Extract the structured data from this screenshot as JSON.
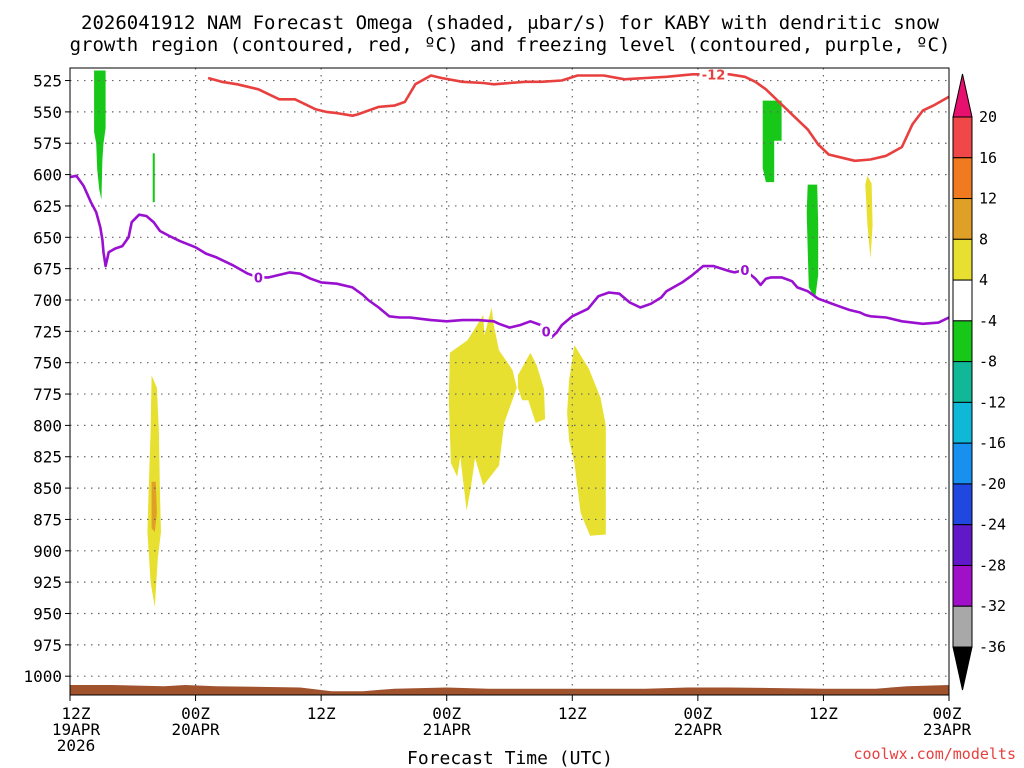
{
  "title_line1": "2026041912 NAM Forecast Omega (shaded, μbar/s) for KABY with dendritic snow",
  "title_line2": "growth region (contoured, red, ºC) and freezing level (contoured, purple, ºC)",
  "credit": "coolwx.com/modelts",
  "colors": {
    "dgz_contour": "#e8403f",
    "freezing_contour": "#9a10d0",
    "ground": "#a0522d",
    "grid": "#666666"
  },
  "chart_data": {
    "type": "time-height contour",
    "x_unit": "forecast hour",
    "xlabel": "Forecast Time (UTC)",
    "xlim": [
      0,
      84
    ],
    "x_ticks": [
      {
        "hour": 0,
        "line1": "12Z",
        "line2": "19APR",
        "line3": "2026"
      },
      {
        "hour": 12,
        "line1": "00Z",
        "line2": "20APR",
        "line3": ""
      },
      {
        "hour": 24,
        "line1": "12Z",
        "line2": "",
        "line3": ""
      },
      {
        "hour": 36,
        "line1": "00Z",
        "line2": "21APR",
        "line3": ""
      },
      {
        "hour": 48,
        "line1": "12Z",
        "line2": "",
        "line3": ""
      },
      {
        "hour": 60,
        "line1": "00Z",
        "line2": "22APR",
        "line3": ""
      },
      {
        "hour": 72,
        "line1": "12Z",
        "line2": "",
        "line3": ""
      },
      {
        "hour": 84,
        "line1": "00Z",
        "line2": "23APR",
        "line3": ""
      }
    ],
    "y_unit": "hPa",
    "ylim": [
      1015,
      515
    ],
    "y_ticks": [
      "525",
      "550",
      "575",
      "600",
      "625",
      "650",
      "675",
      "700",
      "725",
      "750",
      "775",
      "800",
      "825",
      "850",
      "875",
      "900",
      "925",
      "950",
      "975",
      "1000"
    ],
    "grid": true,
    "colorbar": {
      "labels": [
        "20",
        "16",
        "12",
        "8",
        "4",
        "-4",
        "-8",
        "-12",
        "-16",
        "-20",
        "-24",
        "-28",
        "-32",
        "-36"
      ],
      "colors_top_to_bottom": [
        "#e8106e",
        "#f04848",
        "#f07a20",
        "#e0a028",
        "#e8e030",
        "#ffffff",
        "#18c818",
        "#10b898",
        "#10b8d8",
        "#1890f0",
        "#2048e0",
        "#6018c8",
        "#a010c8",
        "#a8a8a8",
        "#000000"
      ]
    },
    "contours": [
      {
        "label": "-12",
        "points": [
          [
            13.2,
            523
          ],
          [
            14.5,
            526
          ],
          [
            16,
            528
          ],
          [
            18,
            532
          ],
          [
            20,
            540
          ],
          [
            21.5,
            540
          ],
          [
            23.5,
            548
          ],
          [
            24.5,
            550
          ],
          [
            25.5,
            551
          ],
          [
            27,
            553
          ],
          [
            27.5,
            552
          ],
          [
            28.5,
            549
          ],
          [
            29.5,
            546
          ],
          [
            31,
            545
          ],
          [
            32,
            542
          ],
          [
            33,
            528
          ],
          [
            34.5,
            521
          ],
          [
            35.5,
            523
          ],
          [
            37.5,
            526
          ],
          [
            39.5,
            527
          ],
          [
            40.5,
            528
          ],
          [
            42,
            527
          ],
          [
            43.5,
            526
          ],
          [
            45,
            526
          ],
          [
            47,
            525
          ],
          [
            48.5,
            521
          ],
          [
            51,
            521
          ],
          [
            53,
            524
          ],
          [
            55,
            523
          ],
          [
            57,
            522
          ],
          [
            59.5,
            520
          ],
          [
            61,
            520
          ],
          [
            63,
            520
          ],
          [
            64.5,
            522
          ],
          [
            65.5,
            526
          ],
          [
            66.5,
            532
          ],
          [
            67.5,
            540
          ],
          [
            69,
            552
          ],
          [
            70.5,
            564
          ],
          [
            71.5,
            576
          ],
          [
            72.5,
            584
          ],
          [
            74,
            587
          ],
          [
            75,
            589
          ],
          [
            76.5,
            588
          ],
          [
            78,
            585
          ],
          [
            79.5,
            578
          ],
          [
            80.5,
            560
          ],
          [
            81.5,
            549
          ],
          [
            82.5,
            545
          ],
          [
            84,
            538
          ]
        ]
      },
      {
        "label": "0",
        "points": [
          [
            0,
            602
          ],
          [
            0.6,
            601
          ],
          [
            1.3,
            609
          ],
          [
            2,
            622
          ],
          [
            2.5,
            630
          ],
          [
            2.9,
            642
          ],
          [
            3.1,
            652
          ],
          [
            3.2,
            662
          ],
          [
            3.4,
            673
          ],
          [
            3.7,
            662
          ],
          [
            4.3,
            659
          ],
          [
            5,
            657
          ],
          [
            5.6,
            650
          ],
          [
            5.9,
            638
          ],
          [
            6.6,
            632
          ],
          [
            7.3,
            633
          ],
          [
            8,
            638
          ],
          [
            8.6,
            645
          ],
          [
            9.5,
            649
          ],
          [
            10.5,
            653
          ],
          [
            12,
            658
          ],
          [
            13,
            663
          ],
          [
            14,
            666
          ],
          [
            15.5,
            672
          ],
          [
            17,
            679
          ],
          [
            18,
            682
          ],
          [
            19,
            682
          ],
          [
            20,
            680
          ],
          [
            21,
            678
          ],
          [
            22,
            679
          ],
          [
            23,
            683
          ],
          [
            24,
            686
          ],
          [
            25.5,
            687
          ],
          [
            27,
            690
          ],
          [
            28,
            696
          ],
          [
            28.5,
            700
          ],
          [
            29.5,
            706
          ],
          [
            30.5,
            713
          ],
          [
            31.5,
            714
          ],
          [
            32.5,
            714
          ],
          [
            33.5,
            715
          ],
          [
            34.5,
            716
          ],
          [
            36,
            717
          ],
          [
            37.5,
            716
          ],
          [
            39,
            716
          ],
          [
            40.5,
            717
          ],
          [
            41,
            719
          ],
          [
            42,
            722
          ],
          [
            43,
            720
          ],
          [
            44,
            717
          ],
          [
            45,
            720
          ],
          [
            45.5,
            725
          ],
          [
            46,
            730
          ],
          [
            46.5,
            726
          ],
          [
            47,
            720
          ],
          [
            48,
            713
          ],
          [
            49.5,
            707
          ],
          [
            50.5,
            697
          ],
          [
            51.5,
            694
          ],
          [
            52.5,
            695
          ],
          [
            53.5,
            702
          ],
          [
            54.5,
            706
          ],
          [
            55.5,
            703
          ],
          [
            56.5,
            698
          ],
          [
            57,
            693
          ],
          [
            58.5,
            686
          ],
          [
            59.5,
            680
          ],
          [
            60.5,
            673
          ],
          [
            61.5,
            673
          ],
          [
            63,
            677
          ],
          [
            63.5,
            678
          ],
          [
            64,
            677
          ],
          [
            64.5,
            676
          ],
          [
            65.5,
            683
          ],
          [
            66,
            688
          ],
          [
            66.5,
            683
          ],
          [
            67,
            682
          ],
          [
            68,
            682
          ],
          [
            69,
            685
          ],
          [
            69.5,
            690
          ],
          [
            70.5,
            693
          ],
          [
            71.5,
            699
          ],
          [
            72.5,
            702
          ],
          [
            73.5,
            705
          ],
          [
            74.5,
            708
          ],
          [
            75.5,
            710
          ],
          [
            76,
            712
          ],
          [
            76.5,
            713
          ],
          [
            78,
            714
          ],
          [
            79.5,
            717
          ],
          [
            81.5,
            719
          ],
          [
            83,
            718
          ],
          [
            84,
            714
          ]
        ]
      }
    ],
    "shaded_regions": [
      {
        "omega_class": "-8",
        "points": [
          [
            2.3,
            517
          ],
          [
            3.4,
            517
          ],
          [
            3.4,
            563
          ],
          [
            3.2,
            575
          ],
          [
            3.1,
            588
          ],
          [
            3.0,
            620
          ],
          [
            2.8,
            612
          ],
          [
            2.6,
            596
          ],
          [
            2.5,
            575
          ],
          [
            2.3,
            566
          ]
        ]
      },
      {
        "omega_class": "-8",
        "points": [
          [
            7.9,
            583
          ],
          [
            8.1,
            583
          ],
          [
            8.1,
            622
          ],
          [
            7.9,
            622
          ]
        ]
      },
      {
        "omega_class": "-8",
        "points": [
          [
            66.2,
            541
          ],
          [
            68,
            541
          ],
          [
            68,
            573
          ],
          [
            67.3,
            573
          ],
          [
            67.3,
            606
          ],
          [
            66.5,
            606
          ],
          [
            66.2,
            595
          ]
        ]
      },
      {
        "omega_class": "-8",
        "points": [
          [
            70.5,
            608
          ],
          [
            71.4,
            608
          ],
          [
            71.5,
            640
          ],
          [
            71.5,
            680
          ],
          [
            71.2,
            699
          ],
          [
            70.6,
            690
          ],
          [
            70.5,
            660
          ],
          [
            70.4,
            630
          ]
        ]
      },
      {
        "omega_class": "4",
        "points": [
          [
            76.2,
            601
          ],
          [
            76.6,
            607
          ],
          [
            76.7,
            640
          ],
          [
            76.5,
            667
          ],
          [
            76.2,
            640
          ],
          [
            76.0,
            608
          ]
        ]
      },
      {
        "omega_class": "4",
        "points": [
          [
            7.8,
            760
          ],
          [
            8.3,
            770
          ],
          [
            8.5,
            805
          ],
          [
            8.6,
            855
          ],
          [
            8.7,
            885
          ],
          [
            8.4,
            905
          ],
          [
            8.1,
            945
          ],
          [
            7.7,
            925
          ],
          [
            7.4,
            885
          ],
          [
            7.5,
            855
          ],
          [
            7.7,
            805
          ]
        ]
      },
      {
        "omega_class": "8",
        "points": [
          [
            7.8,
            845
          ],
          [
            8.2,
            845
          ],
          [
            8.3,
            870
          ],
          [
            8.1,
            885
          ],
          [
            7.8,
            882
          ],
          [
            7.8,
            860
          ]
        ]
      },
      {
        "omega_class": "4",
        "points": [
          [
            36.3,
            742
          ],
          [
            38,
            732
          ],
          [
            39.5,
            712
          ],
          [
            39.6,
            728
          ],
          [
            40.3,
            706
          ],
          [
            40.5,
            720
          ],
          [
            41,
            740
          ],
          [
            42.3,
            756
          ],
          [
            42.7,
            770
          ],
          [
            41.5,
            798
          ],
          [
            41,
            832
          ],
          [
            39.5,
            848
          ],
          [
            38.7,
            826
          ],
          [
            38.3,
            850
          ],
          [
            37.9,
            868
          ],
          [
            37.3,
            825
          ],
          [
            37,
            841
          ],
          [
            36.4,
            830
          ],
          [
            36.2,
            780
          ]
        ]
      },
      {
        "omega_class": "4",
        "points": [
          [
            42.8,
            760
          ],
          [
            44,
            742
          ],
          [
            44.6,
            752
          ],
          [
            45.3,
            771
          ],
          [
            45.4,
            795
          ],
          [
            44.5,
            798
          ],
          [
            43.8,
            780
          ],
          [
            43.2,
            780
          ],
          [
            42.8,
            770
          ]
        ]
      },
      {
        "omega_class": "4",
        "points": [
          [
            47.7,
            764
          ],
          [
            48.2,
            736
          ],
          [
            49.6,
            755
          ],
          [
            50.7,
            778
          ],
          [
            51.2,
            800
          ],
          [
            51.2,
            887
          ],
          [
            49.7,
            888
          ],
          [
            48.8,
            870
          ],
          [
            48.2,
            830
          ],
          [
            47.7,
            812
          ],
          [
            47.5,
            790
          ]
        ]
      }
    ],
    "ground": [
      [
        0,
        1007
      ],
      [
        4,
        1007
      ],
      [
        9,
        1008
      ],
      [
        11,
        1007
      ],
      [
        14,
        1008
      ],
      [
        22,
        1009
      ],
      [
        25,
        1012
      ],
      [
        28,
        1012
      ],
      [
        31,
        1010
      ],
      [
        36,
        1009
      ],
      [
        40,
        1010
      ],
      [
        55,
        1010
      ],
      [
        59,
        1009
      ],
      [
        63,
        1009
      ],
      [
        72,
        1010
      ],
      [
        77,
        1010
      ],
      [
        80,
        1008
      ],
      [
        84,
        1007
      ]
    ]
  }
}
